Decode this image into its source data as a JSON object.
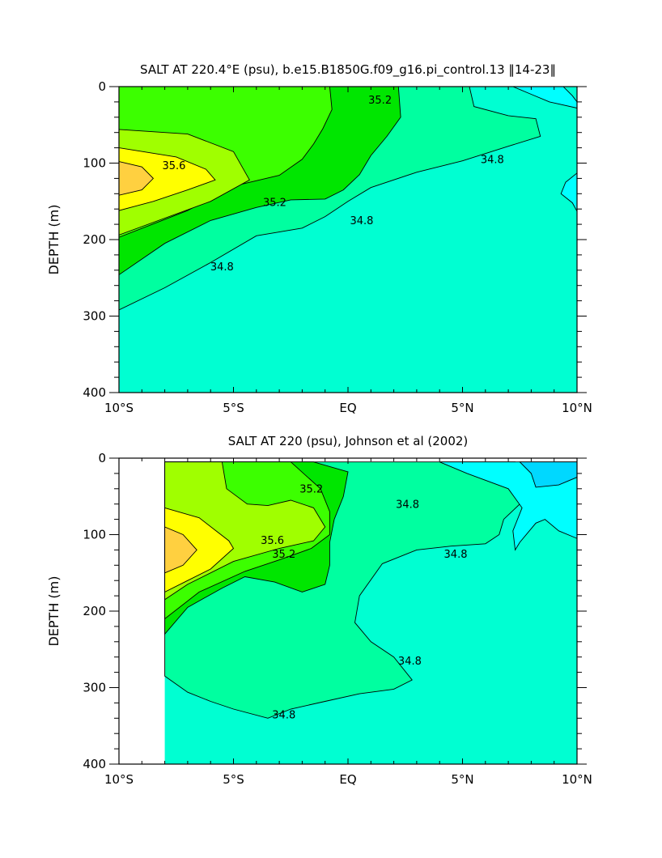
{
  "chart_data": [
    {
      "type": "contour",
      "title": "SALT AT 220.4°E (psu), b.e15.B1850G.f09_g16.pi_control.13 ‖14-23‖",
      "xlabel": "",
      "ylabel": "DEPTH (m)",
      "xlim": [
        -10,
        10
      ],
      "ylim": [
        400,
        0
      ],
      "x_ticks": [
        -10,
        -5,
        0,
        5,
        10
      ],
      "x_tick_labels": [
        "10°S",
        "5°S",
        "EQ",
        "5°N",
        "10°N"
      ],
      "y_ticks": [
        0,
        100,
        200,
        300,
        400
      ],
      "y_tick_labels": [
        "0",
        "100",
        "200",
        "300",
        "400"
      ],
      "contour_levels": [
        34.6,
        34.8,
        35.0,
        35.2,
        35.4,
        35.6,
        35.8
      ],
      "contour_labels": [
        "35.6",
        "35.2",
        "35.2",
        "34.8",
        "34.8",
        "34.8"
      ],
      "colors": {
        "34.6": "#00ffff",
        "34.8": "#00ffd2",
        "35.0": "#00ffa0",
        "35.2": "#00e600",
        "35.4": "#3cff00",
        "35.6": "#a0ff00",
        "35.8": "#ffff00",
        "36.0": "#ffd040"
      },
      "regions": [
        {
          "level": 34.8,
          "poly": [
            [
              -10,
              0
            ],
            [
              10,
              0
            ],
            [
              10,
              400
            ],
            [
              -10,
              400
            ]
          ]
        },
        {
          "level": 35.0,
          "poly": [
            [
              -10,
              0
            ],
            [
              5.3,
              0
            ],
            [
              5.5,
              26
            ],
            [
              7,
              38
            ],
            [
              8.2,
              42
            ],
            [
              8.4,
              65
            ],
            [
              7,
              78
            ],
            [
              5,
              97
            ],
            [
              3,
              112
            ],
            [
              1,
              132
            ],
            [
              0,
              150
            ],
            [
              -1,
              170
            ],
            [
              -2,
              185
            ],
            [
              -4,
              195
            ],
            [
              -6,
              230
            ],
            [
              -8,
              263
            ],
            [
              -10,
              292
            ]
          ]
        },
        {
          "level": 35.2,
          "poly": [
            [
              -10,
              0
            ],
            [
              2.2,
              0
            ],
            [
              2.3,
              40
            ],
            [
              1.7,
              65
            ],
            [
              1,
              90
            ],
            [
              0.5,
              115
            ],
            [
              -0.2,
              135
            ],
            [
              -1,
              147
            ],
            [
              -2.5,
              148
            ],
            [
              -4,
              158
            ],
            [
              -6,
              175
            ],
            [
              -8,
              205
            ],
            [
              -10,
              246
            ]
          ]
        },
        {
          "level": 35.4,
          "poly": [
            [
              -10,
              0
            ],
            [
              -0.8,
              0
            ],
            [
              -0.7,
              30
            ],
            [
              -1.1,
              55
            ],
            [
              -1.5,
              75
            ],
            [
              -2,
              95
            ],
            [
              -3,
              116
            ],
            [
              -5,
              130
            ],
            [
              -7,
              162
            ],
            [
              -10,
              197
            ]
          ]
        },
        {
          "level": 35.6,
          "poly": [
            [
              -10,
              56
            ],
            [
              -7,
              62
            ],
            [
              -5,
              85
            ],
            [
              -4.3,
              122
            ],
            [
              -6,
              150
            ],
            [
              -8,
              172
            ],
            [
              -10,
              194
            ]
          ]
        },
        {
          "level": 35.8,
          "poly": [
            [
              -10,
              80
            ],
            [
              -7.5,
              92
            ],
            [
              -6.2,
              108
            ],
            [
              -5.8,
              122
            ],
            [
              -7,
              135
            ],
            [
              -8.5,
              150
            ],
            [
              -10,
              162
            ]
          ]
        },
        {
          "level": 36.0,
          "poly": [
            [
              -10,
              98
            ],
            [
              -9,
              105
            ],
            [
              -8.5,
              120
            ],
            [
              -9,
              135
            ],
            [
              -10,
              142
            ]
          ]
        },
        {
          "level": 34.6,
          "poly": [
            [
              7.2,
              0
            ],
            [
              10,
              0
            ],
            [
              10,
              28
            ],
            [
              8.8,
              20
            ],
            [
              8,
              10
            ]
          ]
        },
        {
          "level": 34.6,
          "poly": [
            [
              10,
              113
            ],
            [
              9.5,
              125
            ],
            [
              9.3,
              140
            ],
            [
              9.8,
              152
            ],
            [
              10,
              163
            ]
          ]
        },
        {
          "level": 34.4,
          "poly": [
            [
              9.4,
              0
            ],
            [
              10,
              0
            ],
            [
              10,
              20
            ],
            [
              9.8,
              12
            ]
          ]
        }
      ],
      "label_positions": [
        {
          "text": "35.6",
          "x": -7.6,
          "y": 108
        },
        {
          "text": "35.2",
          "x": 1.4,
          "y": 22
        },
        {
          "text": "35.2",
          "x": -3.2,
          "y": 156
        },
        {
          "text": "34.8",
          "x": -5.5,
          "y": 240
        },
        {
          "text": "34.8",
          "x": 0.6,
          "y": 180
        },
        {
          "text": "34.8",
          "x": 6.3,
          "y": 100
        }
      ]
    },
    {
      "type": "contour",
      "title": "SALT AT 220 (psu), Johnson et al (2002)",
      "xlabel": "",
      "ylabel": "DEPTH (m)",
      "xlim": [
        -10,
        10
      ],
      "ylim": [
        400,
        0
      ],
      "data_xlim": [
        -8,
        10
      ],
      "x_ticks": [
        -10,
        -5,
        0,
        5,
        10
      ],
      "x_tick_labels": [
        "10°S",
        "5°S",
        "EQ",
        "5°N",
        "10°N"
      ],
      "y_ticks": [
        0,
        100,
        200,
        300,
        400
      ],
      "y_tick_labels": [
        "0",
        "100",
        "200",
        "300",
        "400"
      ],
      "contour_levels": [
        34.6,
        34.8,
        35.0,
        35.2,
        35.4,
        35.6,
        35.8
      ],
      "contour_labels": [
        "35.2",
        "35.6",
        "35.2",
        "34.8",
        "34.8",
        "34.8",
        "34.8"
      ],
      "colors": {
        "34.4": "#00d8ff",
        "34.6": "#00ffff",
        "34.8": "#00ffd2",
        "35.0": "#00ffa0",
        "35.2": "#00e600",
        "35.4": "#3cff00",
        "35.6": "#a0ff00",
        "35.8": "#ffff00",
        "36.0": "#ffd040"
      },
      "regions": [
        {
          "level": 34.8,
          "poly": [
            [
              -8,
              5
            ],
            [
              10,
              5
            ],
            [
              10,
              400
            ],
            [
              -8,
              400
            ]
          ]
        },
        {
          "level": 35.0,
          "poly": [
            [
              -8,
              5
            ],
            [
              7.3,
              5
            ],
            [
              7.4,
              20
            ],
            [
              8,
              35
            ],
            [
              7.5,
              60
            ],
            [
              6.8,
              80
            ],
            [
              6.6,
              100
            ],
            [
              6,
              112
            ],
            [
              4.5,
              115
            ],
            [
              3,
              120
            ],
            [
              1.5,
              138
            ],
            [
              0.5,
              180
            ],
            [
              0.3,
              215
            ],
            [
              1,
              240
            ],
            [
              2,
              260
            ],
            [
              2.8,
              290
            ],
            [
              2,
              302
            ],
            [
              0.5,
              308
            ],
            [
              -1,
              318
            ],
            [
              -2.5,
              328
            ],
            [
              -3.5,
              340
            ],
            [
              -5,
              328
            ],
            [
              -6,
              318
            ],
            [
              -7,
              306
            ],
            [
              -8,
              285
            ]
          ]
        },
        {
          "level": 35.2,
          "poly": [
            [
              -8,
              5
            ],
            [
              -1.5,
              5
            ],
            [
              0,
              18
            ],
            [
              -0.2,
              50
            ],
            [
              -0.6,
              80
            ],
            [
              -0.8,
              110
            ],
            [
              -0.8,
              140
            ],
            [
              -1,
              165
            ],
            [
              -2,
              175
            ],
            [
              -3.2,
              162
            ],
            [
              -4.5,
              155
            ],
            [
              -5.5,
              170
            ],
            [
              -7,
              195
            ],
            [
              -8,
              230
            ]
          ]
        },
        {
          "level": 35.4,
          "poly": [
            [
              -8,
              5
            ],
            [
              -2.5,
              5
            ],
            [
              -1.2,
              40
            ],
            [
              -0.8,
              70
            ],
            [
              -0.8,
              100
            ],
            [
              -1.6,
              118
            ],
            [
              -3,
              133
            ],
            [
              -4.5,
              148
            ],
            [
              -6.5,
              175
            ],
            [
              -8,
              210
            ]
          ]
        },
        {
          "level": 35.6,
          "poly": [
            [
              -8,
              5
            ],
            [
              -5.5,
              5
            ],
            [
              -5.3,
              40
            ],
            [
              -4.4,
              60
            ],
            [
              -3.5,
              62
            ],
            [
              -2.5,
              55
            ],
            [
              -1.5,
              65
            ],
            [
              -1,
              90
            ],
            [
              -1.5,
              108
            ],
            [
              -3,
              118
            ],
            [
              -5,
              135
            ],
            [
              -7,
              165
            ],
            [
              -8,
              185
            ]
          ]
        },
        {
          "level": 35.8,
          "poly": [
            [
              -8,
              65
            ],
            [
              -6.5,
              78
            ],
            [
              -5.2,
              108
            ],
            [
              -5,
              118
            ],
            [
              -6,
              145
            ],
            [
              -7,
              160
            ],
            [
              -8,
              175
            ]
          ]
        },
        {
          "level": 36.0,
          "poly": [
            [
              -8,
              90
            ],
            [
              -7.2,
              100
            ],
            [
              -6.6,
              120
            ],
            [
              -7.2,
              140
            ],
            [
              -8,
              150
            ]
          ]
        },
        {
          "level": 34.6,
          "poly": [
            [
              4,
              5
            ],
            [
              10,
              5
            ],
            [
              10,
              105
            ],
            [
              9.2,
              95
            ],
            [
              8.6,
              80
            ],
            [
              8.2,
              85
            ],
            [
              7.5,
              110
            ],
            [
              7.3,
              120
            ],
            [
              7.2,
              95
            ],
            [
              7.6,
              65
            ],
            [
              7,
              40
            ],
            [
              5.2,
              20
            ]
          ]
        },
        {
          "level": 34.4,
          "poly": [
            [
              7.5,
              5
            ],
            [
              10,
              5
            ],
            [
              10,
              25
            ],
            [
              9.2,
              35
            ],
            [
              8.2,
              38
            ],
            [
              8,
              20
            ]
          ]
        }
      ],
      "label_positions": [
        {
          "text": "35.2",
          "x": -1.6,
          "y": 45
        },
        {
          "text": "35.6",
          "x": -3.3,
          "y": 112
        },
        {
          "text": "35.2",
          "x": -2.8,
          "y": 130
        },
        {
          "text": "34.8",
          "x": 2.6,
          "y": 65
        },
        {
          "text": "34.8",
          "x": 4.7,
          "y": 130
        },
        {
          "text": "34.8",
          "x": 2.7,
          "y": 270
        },
        {
          "text": "34.8",
          "x": -2.8,
          "y": 340
        }
      ]
    }
  ]
}
